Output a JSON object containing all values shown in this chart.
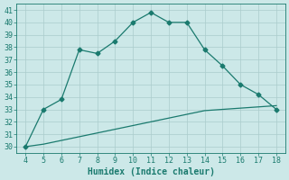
{
  "xlabel": "Humidex (Indice chaleur)",
  "x": [
    4,
    5,
    6,
    7,
    8,
    9,
    10,
    11,
    12,
    13,
    14,
    15,
    16,
    17,
    18
  ],
  "y_main": [
    30,
    33,
    33.8,
    37.8,
    37.5,
    38.5,
    40,
    40.8,
    40,
    40,
    37.8,
    36.5,
    35,
    34.2,
    33
  ],
  "y_base": [
    30,
    30.2,
    30.5,
    30.8,
    31.1,
    31.4,
    31.7,
    32.0,
    32.3,
    32.6,
    32.9,
    33.0,
    33.1,
    33.2,
    33.3
  ],
  "xlim": [
    3.5,
    18.5
  ],
  "ylim": [
    29.5,
    41.5
  ],
  "xticks": [
    4,
    5,
    6,
    7,
    8,
    9,
    10,
    11,
    12,
    13,
    14,
    15,
    16,
    17,
    18
  ],
  "yticks": [
    30,
    31,
    32,
    33,
    34,
    35,
    36,
    37,
    38,
    39,
    40,
    41
  ],
  "line_color": "#1a7a6e",
  "bg_color": "#cce8e8",
  "grid_color": "#aacccc"
}
